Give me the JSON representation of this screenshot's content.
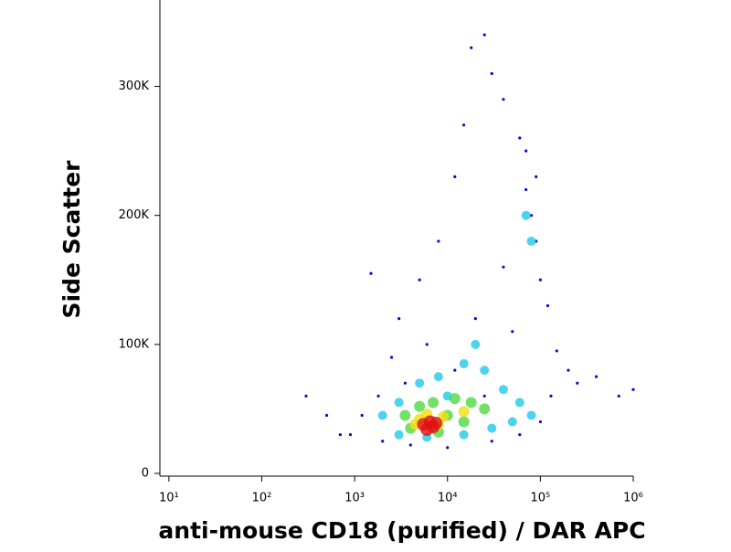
{
  "chart_data": {
    "type": "scatter",
    "x_label": "anti-mouse CD18 (purified) / DAR APC",
    "y_label": "Side Scatter",
    "xscale": "log",
    "xlim": [
      8,
      1000000
    ],
    "ylim": [
      0,
      367000
    ],
    "xticks": [
      {
        "value": 10,
        "label": "10¹"
      },
      {
        "value": 100,
        "label": "10²"
      },
      {
        "value": 1000,
        "label": "10³"
      },
      {
        "value": 10000,
        "label": "10⁴"
      },
      {
        "value": 100000,
        "label": "10⁵"
      },
      {
        "value": 1000000,
        "label": "10⁶"
      }
    ],
    "yticks": [
      0,
      {
        "value": 100000,
        "label": "100K"
      },
      {
        "value": 200000,
        "label": "200K"
      },
      {
        "value": 300000,
        "label": "300K"
      }
    ],
    "series": [
      {
        "color": "#0010d0",
        "x": [
          1500,
          3000,
          2500,
          1800,
          1200,
          900,
          5000,
          8000,
          12000,
          15000,
          18000,
          25000,
          30000,
          40000,
          60000,
          70000,
          80000,
          90000,
          100000,
          120000,
          150000,
          200000,
          250000,
          400000,
          700000,
          1000000,
          300,
          500,
          700,
          2000,
          4000,
          10000,
          30000,
          60000,
          100000,
          20000,
          40000,
          50000,
          6000,
          3500,
          70000,
          90000,
          12000,
          25000,
          130000
        ],
        "y": [
          155000,
          120000,
          90000,
          60000,
          45000,
          30000,
          150000,
          180000,
          230000,
          270000,
          330000,
          340000,
          310000,
          290000,
          260000,
          220000,
          200000,
          180000,
          150000,
          130000,
          95000,
          80000,
          70000,
          75000,
          60000,
          65000,
          60000,
          45000,
          30000,
          25000,
          22000,
          20000,
          25000,
          30000,
          40000,
          120000,
          160000,
          110000,
          100000,
          70000,
          250000,
          230000,
          80000,
          60000,
          60000
        ]
      },
      {
        "color": "#20c8e8",
        "x": [
          2000,
          3000,
          5000,
          8000,
          15000,
          25000,
          40000,
          60000,
          80000,
          30000,
          15000,
          6000,
          3000,
          20000,
          10000,
          50000,
          70000,
          80000
        ],
        "y": [
          45000,
          55000,
          70000,
          75000,
          85000,
          80000,
          65000,
          55000,
          45000,
          35000,
          30000,
          28000,
          30000,
          100000,
          60000,
          40000,
          200000,
          180000
        ]
      },
      {
        "color": "#50d840",
        "x": [
          3500,
          5000,
          7000,
          12000,
          18000,
          25000,
          10000,
          4000,
          8000,
          15000
        ],
        "y": [
          45000,
          52000,
          55000,
          58000,
          55000,
          50000,
          45000,
          35000,
          32000,
          40000
        ]
      },
      {
        "color": "#f0e010",
        "x": [
          5000,
          6000,
          9000,
          15000,
          4500,
          8000
        ],
        "y": [
          42000,
          46000,
          44000,
          48000,
          38000,
          38000
        ]
      },
      {
        "color": "#e01010",
        "x": [
          5500,
          6500,
          7000,
          6000,
          7500
        ],
        "y": [
          38000,
          40000,
          36000,
          34000,
          39000
        ]
      }
    ]
  }
}
